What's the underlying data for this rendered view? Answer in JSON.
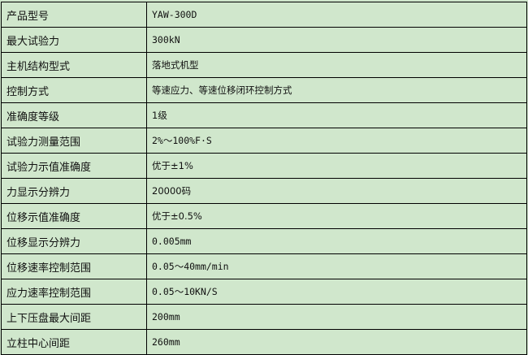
{
  "specs": [
    {
      "label": "产品型号",
      "value": "YAW-300D"
    },
    {
      "label": "最大试验力",
      "value": "300kN"
    },
    {
      "label": "主机结构型式",
      "value": "落地式机型"
    },
    {
      "label": "控制方式",
      "value": "等速应力、等速位移闭环控制方式"
    },
    {
      "label": "准确度等级",
      "value": "1级"
    },
    {
      "label": "试验力测量范围",
      "value": "2%～100%F·S"
    },
    {
      "label": "试验力示值准确度",
      "value": "优于±1%"
    },
    {
      "label": "力显示分辨力",
      "value": "20000码"
    },
    {
      "label": "位移示值准确度",
      "value": "优于±0.5%"
    },
    {
      "label": "位移显示分辨力",
      "value": "0.005mm"
    },
    {
      "label": "位移速率控制范围",
      "value": "0.05～40mm/min"
    },
    {
      "label": "应力速率控制范围",
      "value": "0.05～10KN/S"
    },
    {
      "label": "上下压盘最大间距",
      "value": "200mm"
    },
    {
      "label": "立柱中心间距",
      "value": "260mm"
    }
  ]
}
